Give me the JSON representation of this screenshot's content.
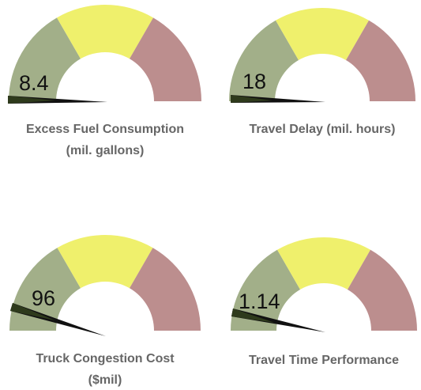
{
  "gauges": [
    {
      "title_lines": [
        "Excess Fuel Consumption",
        "(mil. gallons)"
      ],
      "value": 8.4
    },
    {
      "title_lines": [
        "Travel Delay (mil. hours)"
      ],
      "value": 18
    },
    {
      "title_lines": [
        "Truck Congestion Cost",
        "($mil)"
      ],
      "value": 96
    },
    {
      "title_lines": [
        "Travel Time Performance"
      ],
      "value": 1.14
    }
  ]
}
